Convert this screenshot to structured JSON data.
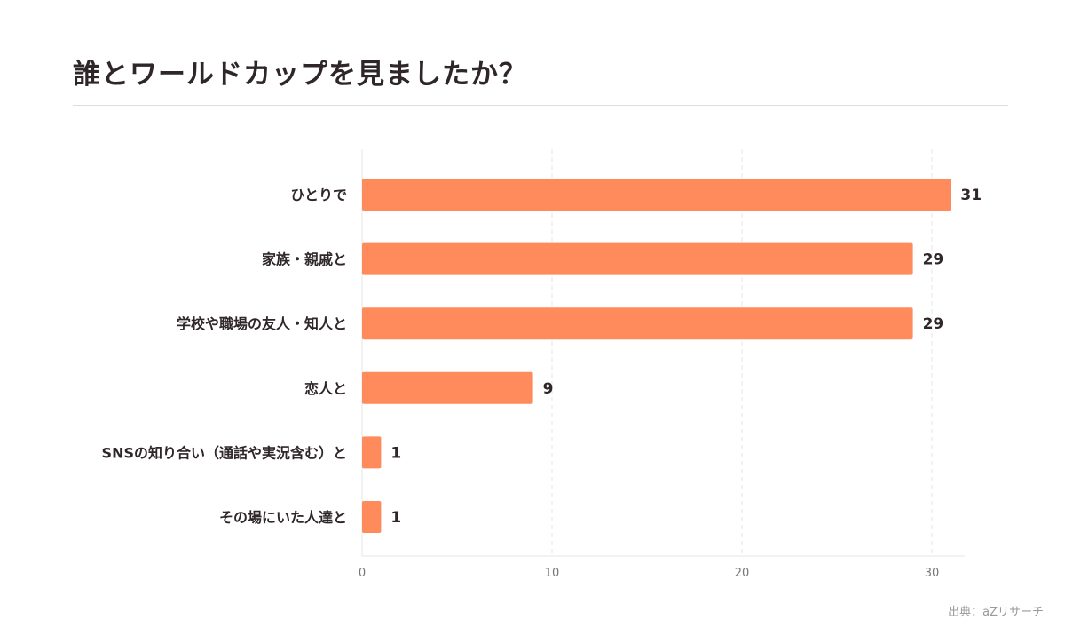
{
  "page": {
    "title": "誰とワールドカップを見ましたか？",
    "source": "出典：aZリサーチ"
  },
  "colors": {
    "bar": "#ff8a5b",
    "text": "#2f2629",
    "axis_tick_text": "#777777",
    "grid": "#e5e5e5",
    "rule": "#dddddd"
  },
  "chart_data": {
    "type": "bar",
    "orientation": "horizontal",
    "title": "誰とワールドカップを見ましたか？",
    "xlabel": "",
    "ylabel": "",
    "xlim": [
      0,
      32
    ],
    "xticks": [
      0,
      10,
      20,
      30
    ],
    "grid": true,
    "legend": "none",
    "categories": [
      "ひとりで",
      "家族・親戚と",
      "学校や職場の友人・知人と",
      "恋人と",
      "SNSの知り合い（通話や実況含む）と",
      "その場にいた人達と"
    ],
    "values": [
      31,
      29,
      29,
      9,
      1,
      1
    ],
    "data_labels": [
      "31",
      "29",
      "29",
      "9",
      "1",
      "1"
    ]
  }
}
